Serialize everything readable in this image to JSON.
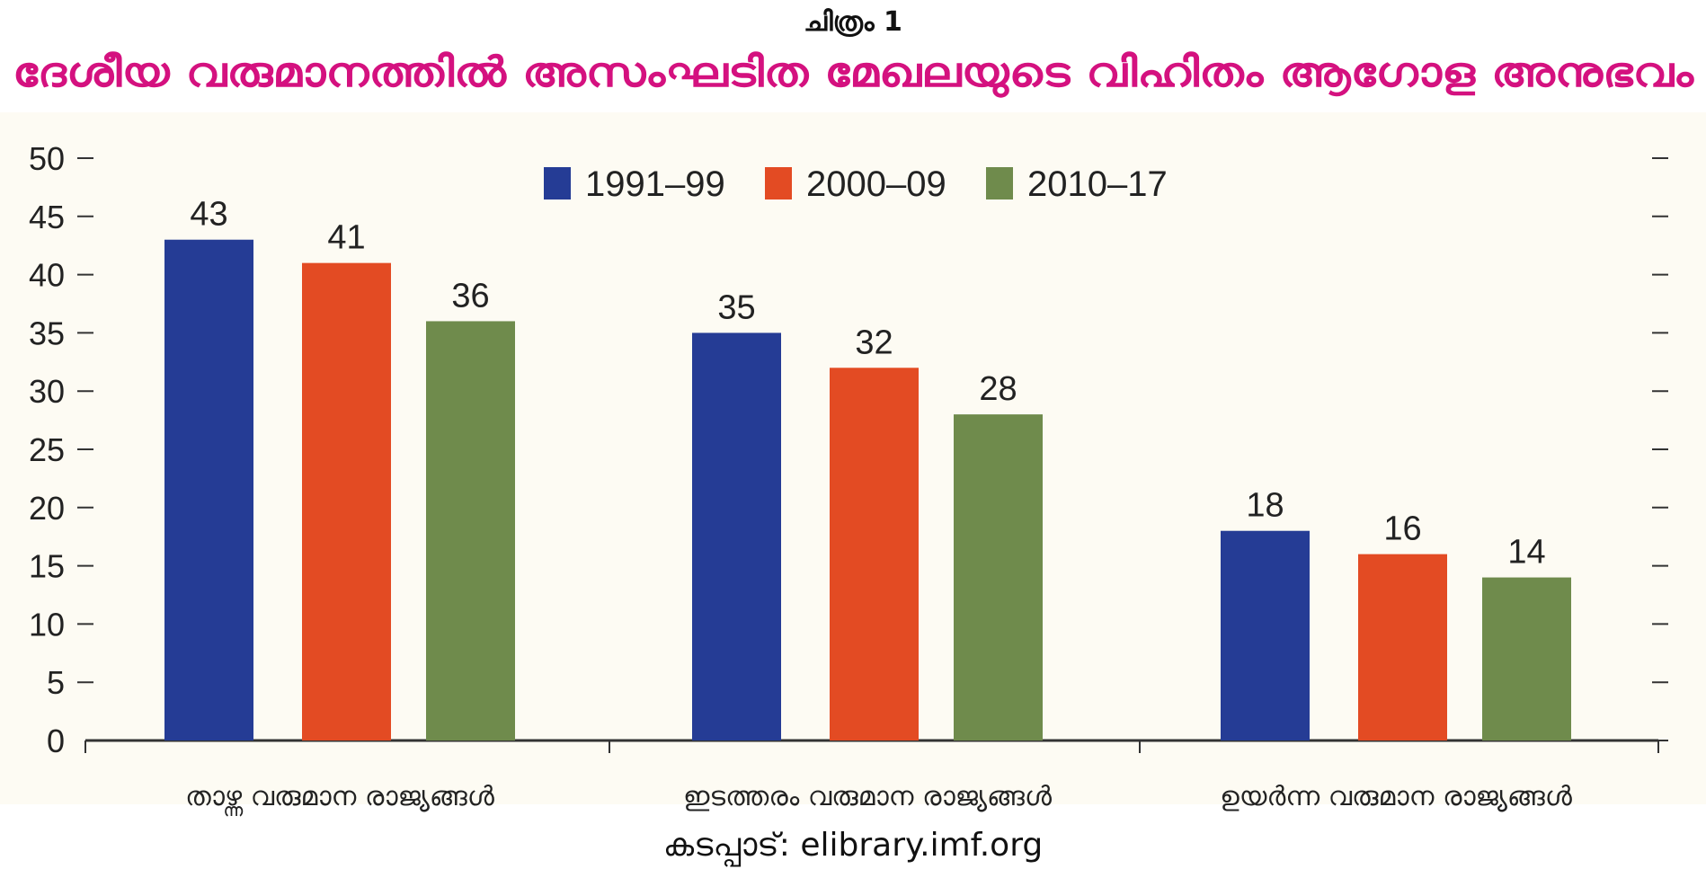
{
  "figure_label": "ചിത്രം 1",
  "title": "ദേശീയ വരുമാനത്തിൽ അസംഘടിത മേഖലയുടെ വിഹിതം  ആഗോള അനുഭവം",
  "source": "കടപ്പാട്: elibrary.imf.org",
  "colors": {
    "title": "#d4117f",
    "series": [
      "#253c95",
      "#e34b23",
      "#6f8b4c"
    ],
    "axis": "#333333",
    "plot_bg": "#fdfbf3"
  },
  "chart_data": {
    "type": "bar",
    "title": "ദേശീയ വരുമാനത്തിൽ അസംഘടിത മേഖലയുടെ വിഹിതം  ആഗോള അനുഭവം",
    "xlabel": "",
    "ylabel": "",
    "ylim": [
      0,
      50
    ],
    "yticks": [
      0,
      5,
      10,
      15,
      20,
      25,
      30,
      35,
      40,
      45,
      50
    ],
    "legend": "top-center",
    "grid": false,
    "categories": [
      "താഴ്ന്ന വരുമാന രാജ്യങ്ങൾ",
      "ഇടത്തരം വരുമാന രാജ്യങ്ങൾ",
      "ഉയർന്ന വരുമാന രാജ്യങ്ങൾ"
    ],
    "series": [
      {
        "name": "1991–99",
        "values": [
          43,
          35,
          18
        ],
        "labels": [
          "43",
          "35",
          "18"
        ]
      },
      {
        "name": "2000–09",
        "values": [
          41,
          32,
          16
        ],
        "labels": [
          "41",
          "32",
          "16"
        ]
      },
      {
        "name": "2010–17",
        "values": [
          36,
          28,
          14
        ],
        "labels": [
          "36",
          "28",
          "14"
        ]
      }
    ]
  }
}
